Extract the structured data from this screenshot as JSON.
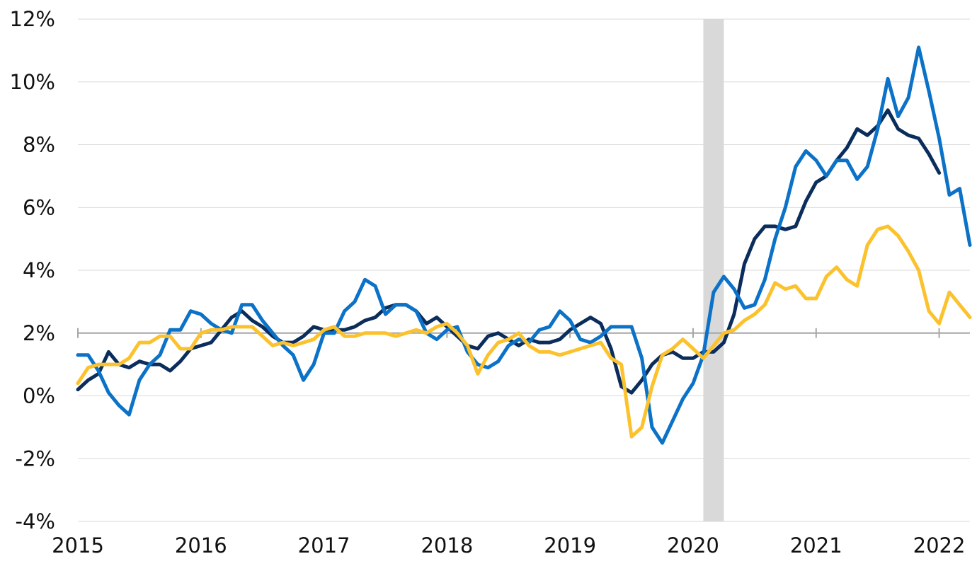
{
  "chart_data": {
    "type": "line",
    "title": "",
    "xlabel": "",
    "ylabel": "",
    "x_start": "2015-01",
    "x_step": "month",
    "xlim": [
      "2015-01",
      "2022-04"
    ],
    "ylim": [
      -4,
      12
    ],
    "y_ticks": [
      -4,
      -2,
      0,
      2,
      4,
      6,
      8,
      10,
      12
    ],
    "y_tick_labels": [
      "-4%",
      "-2%",
      "0%",
      "2%",
      "4%",
      "6%",
      "8%",
      "10%",
      "12%"
    ],
    "x_ticks": [
      "2015-01",
      "2016-01",
      "2017-01",
      "2018-01",
      "2019-01",
      "2020-01",
      "2021-01",
      "2022-01"
    ],
    "x_tick_labels": [
      "2015",
      "2016",
      "2017",
      "2018",
      "2019",
      "2020",
      "2021",
      "2022"
    ],
    "reference_line": 2,
    "grid": true,
    "legend": "none",
    "shaded_period": [
      "2020-02",
      "2020-04"
    ],
    "shade_color": "#d9d9d9",
    "series": [
      {
        "color": "#0b2d5c",
        "values": [
          0.2,
          0.5,
          0.7,
          1.4,
          1.0,
          0.9,
          1.1,
          1.0,
          1.0,
          0.8,
          1.1,
          1.5,
          1.6,
          1.7,
          2.1,
          2.5,
          2.7,
          2.4,
          2.2,
          1.9,
          1.7,
          1.7,
          1.9,
          2.2,
          2.1,
          2.1,
          2.1,
          2.2,
          2.4,
          2.5,
          2.8,
          2.9,
          2.9,
          2.7,
          2.3,
          2.5,
          2.2,
          1.9,
          1.6,
          1.5,
          1.9,
          2.0,
          1.8,
          1.6,
          1.8,
          1.7,
          1.7,
          1.8,
          2.1,
          2.3,
          2.5,
          2.3,
          1.5,
          0.3,
          0.1,
          0.5,
          1.0,
          1.3,
          1.4,
          1.2,
          1.2,
          1.4,
          1.4,
          1.7,
          2.6,
          4.2,
          5.0,
          5.4,
          5.4,
          5.3,
          5.4,
          6.2,
          6.8,
          7.0,
          7.5,
          7.9,
          8.5,
          8.3,
          8.6,
          9.1,
          8.5,
          8.3,
          8.2,
          7.7,
          7.1
        ]
      },
      {
        "color": "#0b72c8",
        "values": [
          1.3,
          1.3,
          0.8,
          0.1,
          -0.3,
          -0.6,
          0.5,
          1.0,
          1.3,
          2.1,
          2.1,
          2.7,
          2.6,
          2.3,
          2.1,
          2.0,
          2.9,
          2.9,
          2.4,
          2.0,
          1.6,
          1.3,
          0.5,
          1.0,
          2.0,
          2.0,
          2.7,
          3.0,
          3.7,
          3.5,
          2.6,
          2.9,
          2.9,
          2.7,
          2.0,
          1.8,
          2.1,
          2.2,
          1.4,
          1.0,
          0.9,
          1.1,
          1.6,
          1.8,
          1.7,
          2.1,
          2.2,
          2.7,
          2.4,
          1.8,
          1.7,
          1.9,
          2.2,
          2.2,
          2.2,
          1.2,
          -1.0,
          -1.5,
          -0.8,
          -0.1,
          0.4,
          1.3,
          3.3,
          3.8,
          3.4,
          2.8,
          2.9,
          3.7,
          5.0,
          6.0,
          7.3,
          7.8,
          7.5,
          7.0,
          7.5,
          7.5,
          6.9,
          7.3,
          8.5,
          10.1,
          8.9,
          9.5,
          11.1,
          9.7,
          8.2,
          6.4,
          6.6,
          4.8
        ]
      },
      {
        "color": "#fcc22d",
        "values": [
          0.4,
          0.9,
          1.0,
          1.0,
          1.0,
          1.2,
          1.7,
          1.7,
          1.9,
          1.9,
          1.5,
          1.5,
          2.0,
          2.1,
          2.1,
          2.2,
          2.2,
          2.2,
          1.9,
          1.6,
          1.7,
          1.6,
          1.7,
          1.8,
          2.1,
          2.2,
          1.9,
          1.9,
          2.0,
          2.0,
          2.0,
          1.9,
          2.0,
          2.1,
          2.0,
          2.2,
          2.3,
          2.0,
          1.6,
          0.7,
          1.3,
          1.7,
          1.8,
          2.0,
          1.6,
          1.4,
          1.4,
          1.3,
          1.4,
          1.5,
          1.6,
          1.7,
          1.2,
          1.0,
          -1.3,
          -1.0,
          0.3,
          1.3,
          1.5,
          1.8,
          1.5,
          1.2,
          1.6,
          2.0,
          2.1,
          2.4,
          2.6,
          2.9,
          3.6,
          3.4,
          3.5,
          3.1,
          3.1,
          3.8,
          4.1,
          3.7,
          3.5,
          4.8,
          5.3,
          5.4,
          5.1,
          4.6,
          4.0,
          2.7,
          2.3,
          3.3,
          2.9,
          2.5
        ]
      }
    ]
  }
}
